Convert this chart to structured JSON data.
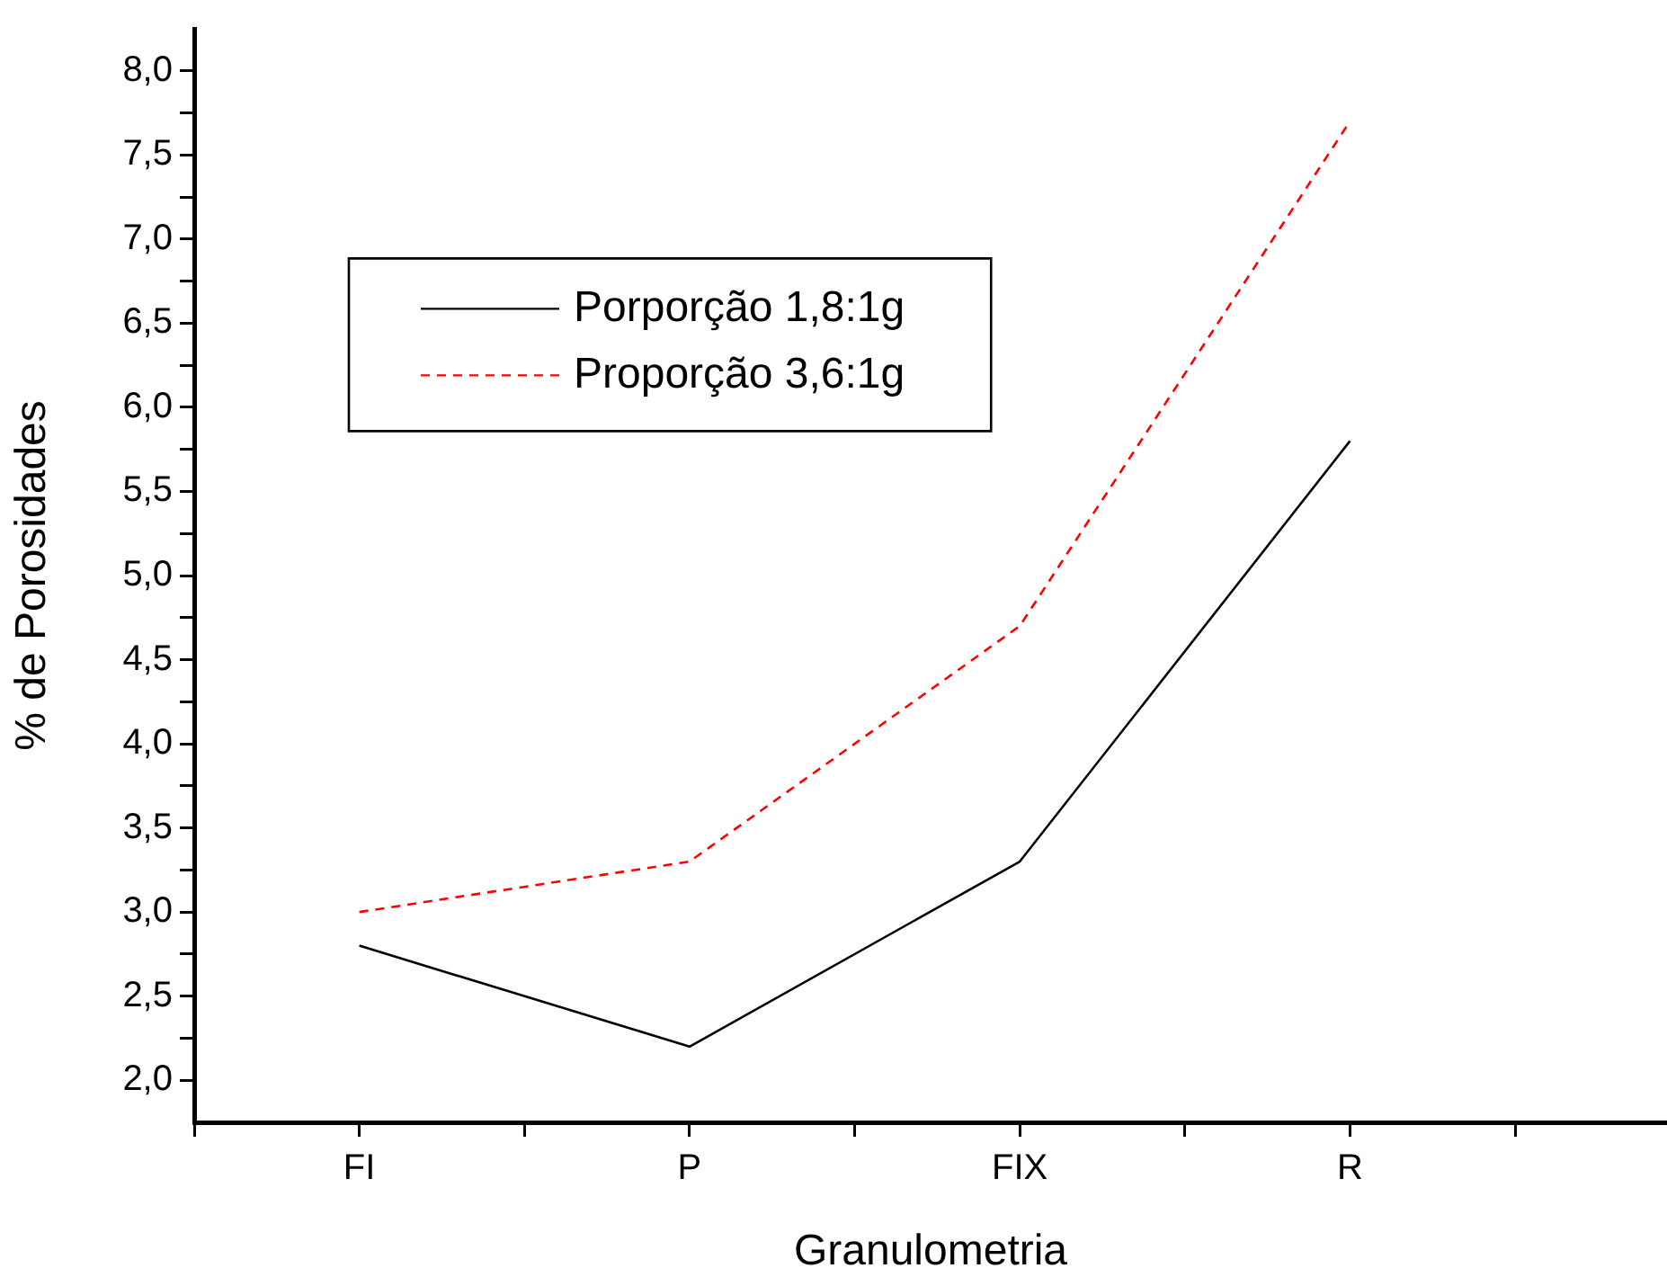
{
  "chart_data": {
    "type": "line",
    "xlabel": "Granulometria",
    "ylabel": "% de Porosidades",
    "categories": [
      "FI",
      "P",
      "FIX",
      "R"
    ],
    "series": [
      {
        "name": "Porporção 1,8:1g",
        "color": "#000000",
        "line_style": "solid",
        "values": [
          2.8,
          2.2,
          3.3,
          5.8
        ]
      },
      {
        "name": "Proporção 3,6:1g",
        "color": "#ff0000",
        "line_style": "dashed",
        "values": [
          3.0,
          3.3,
          4.7,
          7.7
        ]
      }
    ],
    "ylim": [
      1.75,
      8.25
    ],
    "yticks": [
      {
        "value": 2,
        "label": "2,0"
      },
      {
        "value": 2.25,
        "label": null
      },
      {
        "value": 2.5,
        "label": "2,5"
      },
      {
        "value": 2.75,
        "label": null
      },
      {
        "value": 3,
        "label": "3,0"
      },
      {
        "value": 3.25,
        "label": null
      },
      {
        "value": 3.5,
        "label": "3,5"
      },
      {
        "value": 3.75,
        "label": null
      },
      {
        "value": 4,
        "label": "4,0"
      },
      {
        "value": 4.25,
        "label": null
      },
      {
        "value": 4.5,
        "label": "4,5"
      },
      {
        "value": 4.75,
        "label": null
      },
      {
        "value": 5,
        "label": "5,0"
      },
      {
        "value": 5.25,
        "label": null
      },
      {
        "value": 5.5,
        "label": "5,5"
      },
      {
        "value": 5.75,
        "label": null
      },
      {
        "value": 6,
        "label": "6,0"
      },
      {
        "value": 6.25,
        "label": null
      },
      {
        "value": 6.5,
        "label": "6,5"
      },
      {
        "value": 6.75,
        "label": null
      },
      {
        "value": 7,
        "label": "7,0"
      },
      {
        "value": 7.25,
        "label": null
      },
      {
        "value": 7.5,
        "label": "7,5"
      },
      {
        "value": 7.75,
        "label": null
      },
      {
        "value": 8,
        "label": "8,0"
      }
    ],
    "grid": false,
    "legend": "top left",
    "marker": "none"
  }
}
